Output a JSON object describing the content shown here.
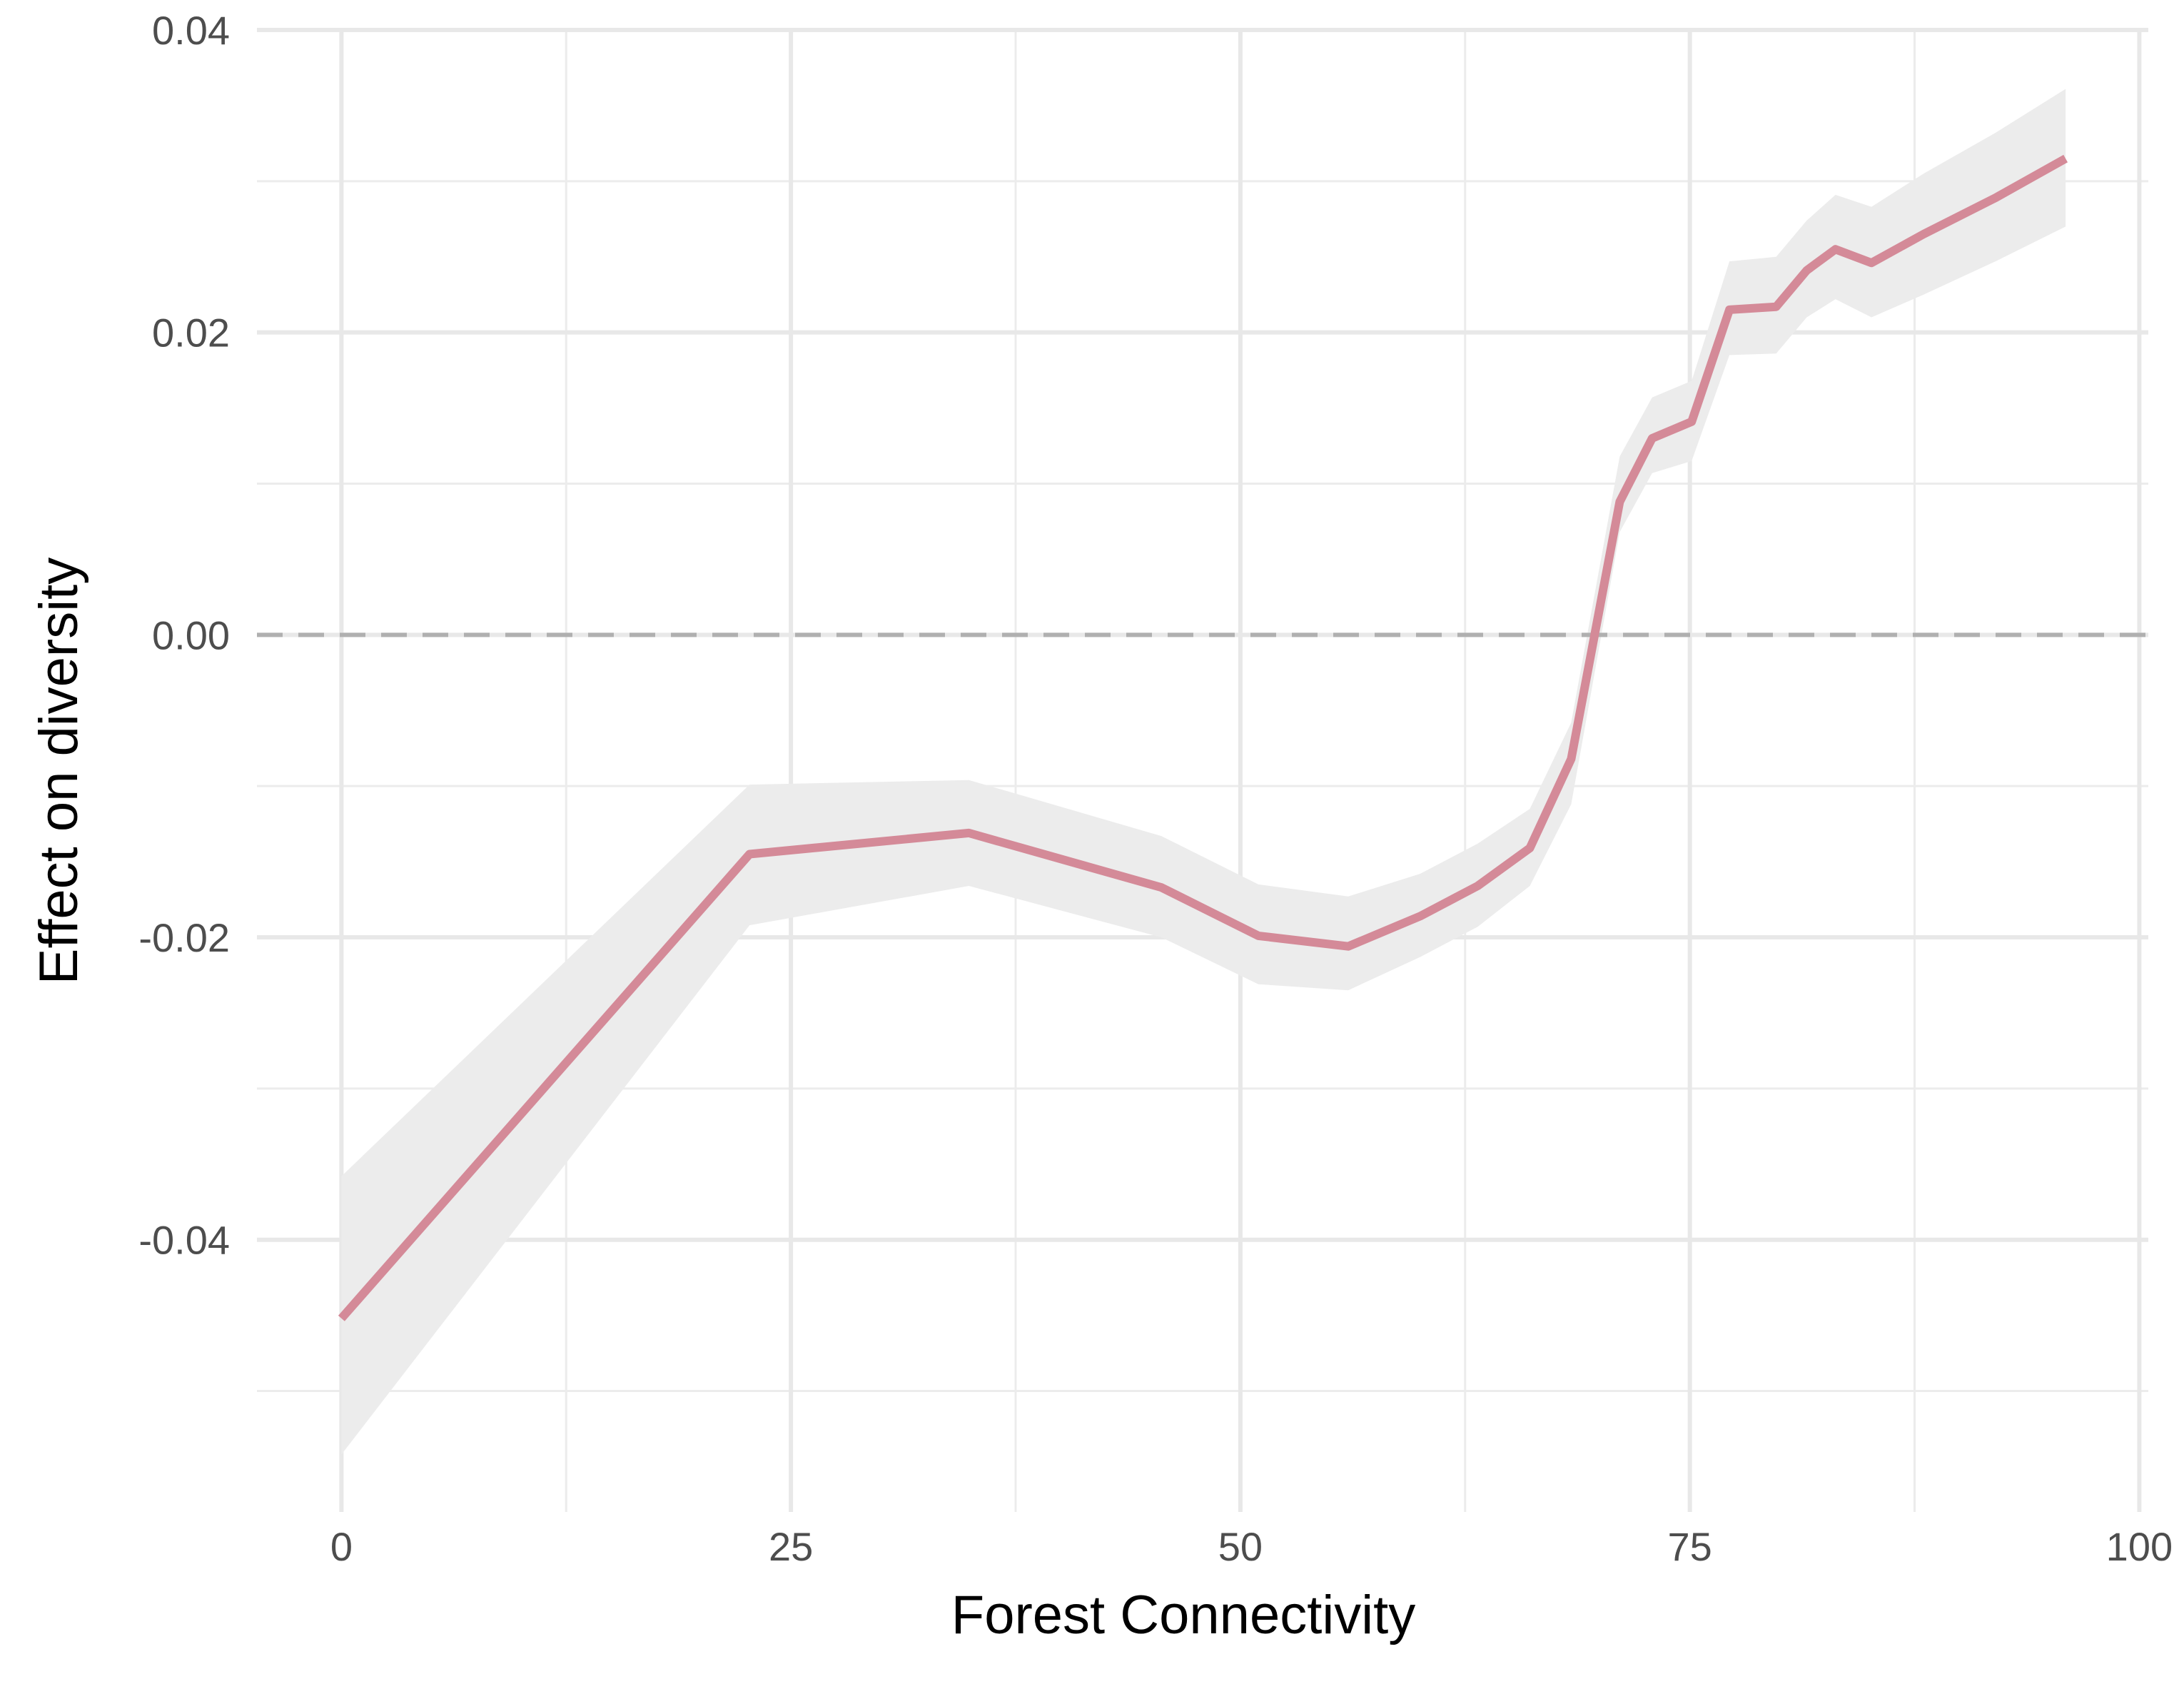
{
  "chart_data": {
    "type": "line",
    "title": "",
    "xlabel": "Forest Connectivity",
    "ylabel": "Effect on diversity",
    "xlim": [
      -4.7,
      100.5
    ],
    "ylim": [
      -0.058,
      0.04
    ],
    "x_ticks": [
      0,
      25,
      50,
      75,
      100
    ],
    "x_tick_labels": [
      "0",
      "25",
      "50",
      "75",
      "100"
    ],
    "y_ticks": [
      -0.04,
      -0.02,
      0.0,
      0.02,
      0.04
    ],
    "y_tick_labels": [
      "-0.04",
      "-0.02",
      "0.00",
      "0.02",
      "0.04"
    ],
    "grid": true,
    "reference_line": {
      "y": 0,
      "style": "dashed",
      "color": "#b0b0b0"
    },
    "line_color": "#d48a98",
    "band_color": "#ececec",
    "series": [
      {
        "x": [
          0,
          22.7,
          34.9,
          45.6,
          51.0,
          56.0,
          60.0,
          63.2,
          66.1,
          68.4,
          71.1,
          72.9,
          75.1,
          77.2,
          79.8,
          81.5,
          83.1,
          85.1,
          88.0,
          92.0,
          95.9
        ],
        "values": [
          -0.0452,
          -0.0145,
          -0.0131,
          -0.0167,
          -0.0199,
          -0.0206,
          -0.0186,
          -0.0166,
          -0.0141,
          -0.0082,
          0.0088,
          0.013,
          0.0141,
          0.0215,
          0.0217,
          0.0241,
          0.0255,
          0.0246,
          0.0265,
          0.0289,
          0.0315
        ],
        "lower": [
          -0.0542,
          -0.0192,
          -0.0166,
          -0.02,
          -0.0231,
          -0.0235,
          -0.0213,
          -0.0193,
          -0.0166,
          -0.0112,
          0.0068,
          0.0107,
          0.0115,
          0.0185,
          0.0186,
          0.021,
          0.0222,
          0.021,
          0.0225,
          0.0247,
          0.027
        ],
        "upper": [
          -0.0358,
          -0.0099,
          -0.0096,
          -0.0133,
          -0.0165,
          -0.0173,
          -0.0158,
          -0.0138,
          -0.0115,
          -0.0058,
          0.0118,
          0.0157,
          0.0168,
          0.0247,
          0.025,
          0.0274,
          0.0291,
          0.0283,
          0.0305,
          0.0332,
          0.0361
        ]
      }
    ]
  }
}
